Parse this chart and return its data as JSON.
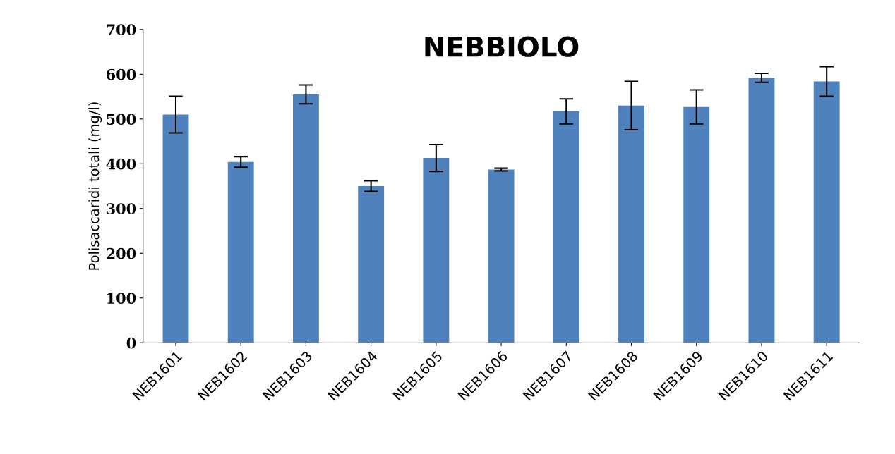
{
  "chart_data": {
    "type": "bar",
    "title": "NEBBIOLO",
    "ylabel": "Polisaccaridi totali (mg/l)",
    "categories": [
      "NEB1601",
      "NEB1602",
      "NEB1603",
      "NEB1604",
      "NEB1605",
      "NEB1606",
      "NEB1607",
      "NEB1608",
      "NEB1609",
      "NEB1610",
      "NEB1611"
    ],
    "values": [
      510,
      404,
      555,
      350,
      413,
      387,
      517,
      530,
      527,
      592,
      584
    ],
    "errors": [
      41,
      12,
      21,
      12,
      30,
      3,
      28,
      54,
      38,
      10,
      33
    ],
    "color": "#4f81bd",
    "ylim": [
      0,
      700
    ],
    "yticks": [
      0,
      100,
      200,
      300,
      400,
      500,
      600,
      700
    ],
    "grid": false
  }
}
